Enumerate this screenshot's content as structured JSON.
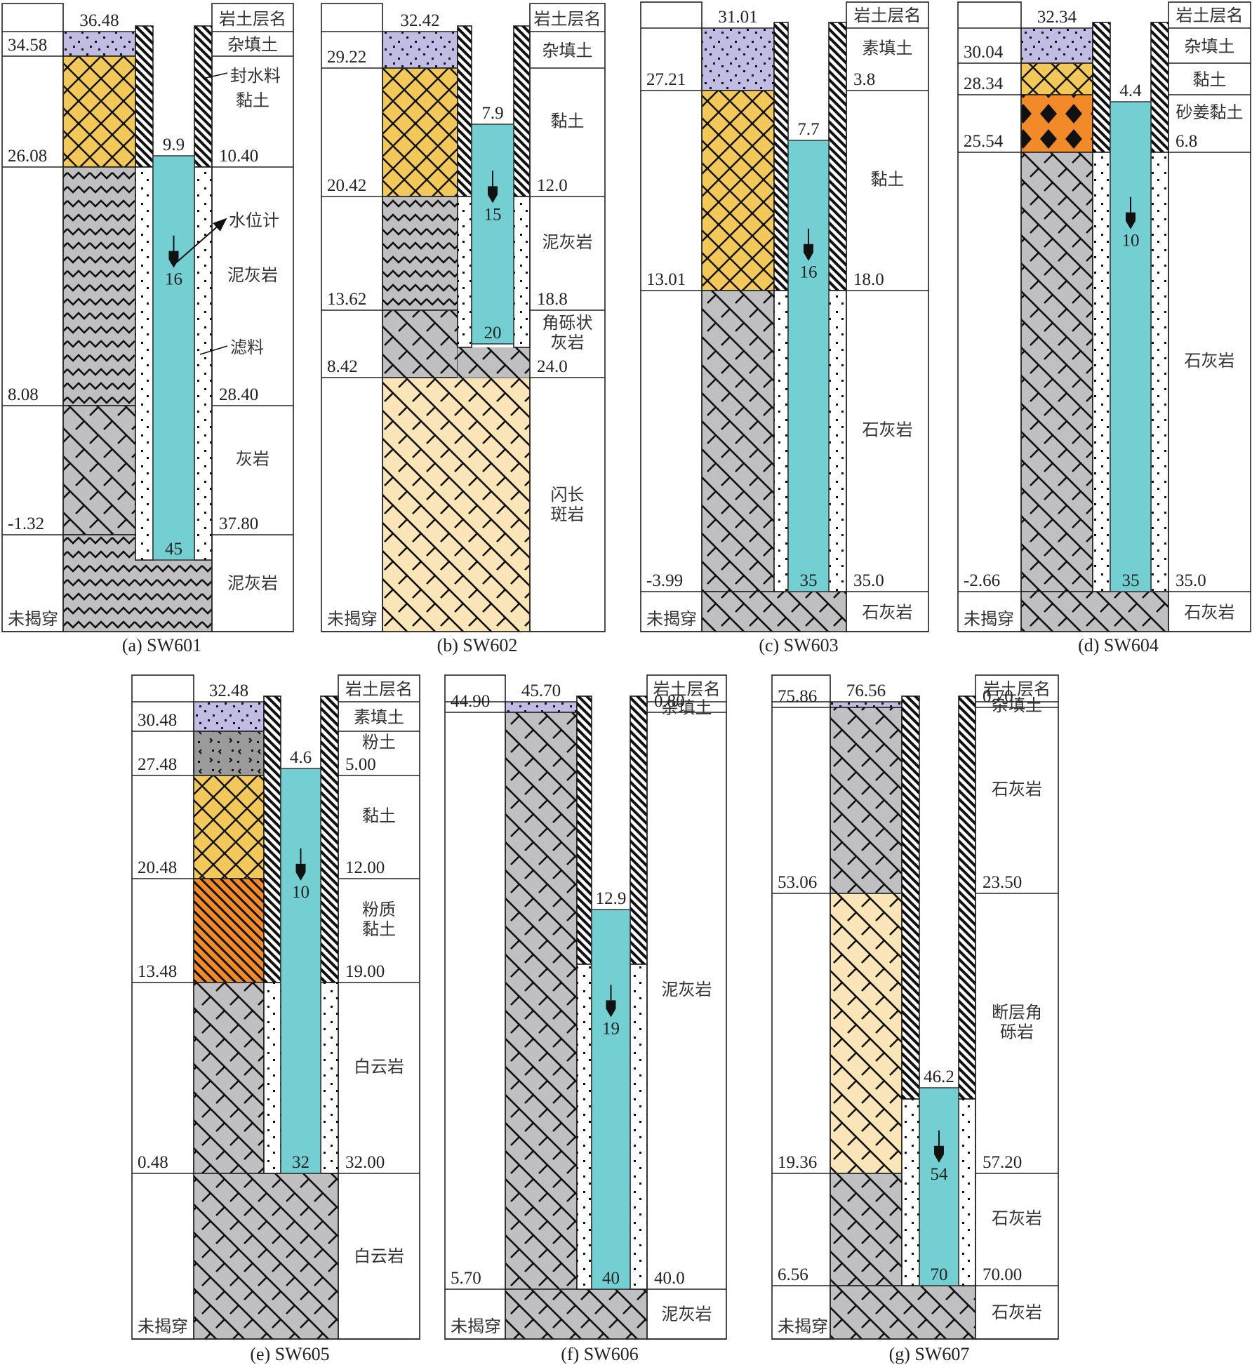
{
  "figure": {
    "header_label": "岩土层名",
    "unpenetrated_label": "未揭穿",
    "colors": {
      "fill_soil": "#c0bce3",
      "clay": "#f2c85a",
      "ginger_clay": "#f28a2a",
      "silty_clay": "#f28a2a",
      "silt": "#9b9b9b",
      "rock_gray": "#c0c0c2",
      "diorite_porphyry": "#fae5b8",
      "fault_breccia": "#fae5b8",
      "water": "#74cfd2",
      "line": "#222222"
    },
    "annotations": {
      "seal_material": "封水料",
      "water_level_gauge": "水位计",
      "filter_material": "滤料"
    }
  },
  "wells": [
    {
      "id": "SW601",
      "caption": "(a) SW601",
      "top_elevation": "36.48",
      "water_level": "9.9",
      "gauge_depth": "16",
      "pipe_bottom": "45",
      "layers": [
        {
          "name": "杂填土",
          "elev_label": "34.58",
          "depth_label": "",
          "pattern": "fill_soil"
        },
        {
          "name": "黏土",
          "elev_label": "26.08",
          "depth_label": "10.40",
          "pattern": "clay"
        },
        {
          "name": "泥灰岩",
          "elev_label": "8.08",
          "depth_label": "28.40",
          "pattern": "marl"
        },
        {
          "name": "灰岩",
          "elev_label": "-1.32",
          "depth_label": "37.80",
          "pattern": "limestone"
        },
        {
          "name": "泥灰岩",
          "elev_label": "未揭穿",
          "depth_label": "",
          "pattern": "marl"
        }
      ]
    },
    {
      "id": "SW602",
      "caption": "(b) SW602",
      "top_elevation": "32.42",
      "water_level": "7.9",
      "gauge_depth": "15",
      "pipe_bottom": "20",
      "layers": [
        {
          "name": "杂填土",
          "elev_label": "29.22",
          "depth_label": "",
          "pattern": "fill_soil"
        },
        {
          "name": "黏土",
          "elev_label": "20.42",
          "depth_label": "12.0",
          "pattern": "clay"
        },
        {
          "name": "泥灰岩",
          "elev_label": "13.62",
          "depth_label": "18.8",
          "pattern": "marl"
        },
        {
          "name": "角砾状灰岩",
          "elev_label": "8.42",
          "depth_label": "24.0",
          "pattern": "limestone"
        },
        {
          "name": "闪长斑岩",
          "elev_label": "未揭穿",
          "depth_label": "",
          "pattern": "diorite"
        }
      ]
    },
    {
      "id": "SW603",
      "caption": "(c) SW603",
      "top_elevation": "31.01",
      "water_level": "7.7",
      "gauge_depth": "16",
      "pipe_bottom": "35",
      "layers": [
        {
          "name": "素填土",
          "elev_label": "27.21",
          "depth_label": "3.8",
          "pattern": "fill_soil"
        },
        {
          "name": "黏土",
          "elev_label": "13.01",
          "depth_label": "18.0",
          "pattern": "clay"
        },
        {
          "name": "石灰岩",
          "elev_label": "-3.99",
          "depth_label": "35.0",
          "pattern": "limestone"
        },
        {
          "name": "石灰岩",
          "elev_label": "未揭穿",
          "depth_label": "",
          "pattern": "limestone"
        }
      ]
    },
    {
      "id": "SW604",
      "caption": "(d) SW604",
      "top_elevation": "32.34",
      "water_level": "4.4",
      "gauge_depth": "10",
      "pipe_bottom": "35",
      "layers": [
        {
          "name": "杂填土",
          "elev_label": "30.04",
          "depth_label": "",
          "pattern": "fill_soil"
        },
        {
          "name": "黏土",
          "elev_label": "28.34",
          "depth_label": "",
          "pattern": "clay"
        },
        {
          "name": "砂姜黏土",
          "elev_label": "25.54",
          "depth_label": "6.8",
          "pattern": "ginger"
        },
        {
          "name": "石灰岩",
          "elev_label": "-2.66",
          "depth_label": "35.0",
          "pattern": "limestone"
        },
        {
          "name": "石灰岩",
          "elev_label": "未揭穿",
          "depth_label": "",
          "pattern": "limestone"
        }
      ]
    },
    {
      "id": "SW605",
      "caption": "(e) SW605",
      "top_elevation": "32.48",
      "water_level": "4.6",
      "gauge_depth": "10",
      "pipe_bottom": "32",
      "layers": [
        {
          "name": "素填土",
          "elev_label": "30.48",
          "depth_label": "",
          "pattern": "fill_soil"
        },
        {
          "name": "粉土",
          "elev_label": "27.48",
          "depth_label": "5.00",
          "pattern": "silt"
        },
        {
          "name": "黏土",
          "elev_label": "20.48",
          "depth_label": "12.00",
          "pattern": "clay"
        },
        {
          "name": "粉质黏土",
          "elev_label": "13.48",
          "depth_label": "19.00",
          "pattern": "silty"
        },
        {
          "name": "白云岩",
          "elev_label": "0.48",
          "depth_label": "32.00",
          "pattern": "limestone"
        },
        {
          "name": "白云岩",
          "elev_label": "未揭穿",
          "depth_label": "",
          "pattern": "limestone"
        }
      ]
    },
    {
      "id": "SW606",
      "caption": "(f) SW606",
      "top_elevation": "45.70",
      "water_level": "12.9",
      "gauge_depth": "19",
      "pipe_bottom": "40",
      "layers": [
        {
          "name": "杂填土",
          "elev_label": "44.90",
          "depth_label": "0.80",
          "pattern": "fill_soil"
        },
        {
          "name": "泥灰岩",
          "elev_label": "5.70",
          "depth_label": "40.0",
          "pattern": "limestone"
        },
        {
          "name": "泥灰岩",
          "elev_label": "未揭穿",
          "depth_label": "",
          "pattern": "limestone"
        }
      ]
    },
    {
      "id": "SW607",
      "caption": "(g) SW607",
      "top_elevation": "76.56",
      "water_level": "46.2",
      "gauge_depth": "54",
      "pipe_bottom": "70",
      "layers": [
        {
          "name": "杂填土",
          "elev_label": "75.86",
          "depth_label": "0.70",
          "pattern": "fill_soil"
        },
        {
          "name": "石灰岩",
          "elev_label": "53.06",
          "depth_label": "23.50",
          "pattern": "limestone"
        },
        {
          "name": "断层角砾岩",
          "elev_label": "19.36",
          "depth_label": "57.20",
          "pattern": "breccia"
        },
        {
          "name": "石灰岩",
          "elev_label": "6.56",
          "depth_label": "70.00",
          "pattern": "limestone"
        },
        {
          "name": "石灰岩",
          "elev_label": "未揭穿",
          "depth_label": "",
          "pattern": "limestone"
        }
      ]
    }
  ]
}
